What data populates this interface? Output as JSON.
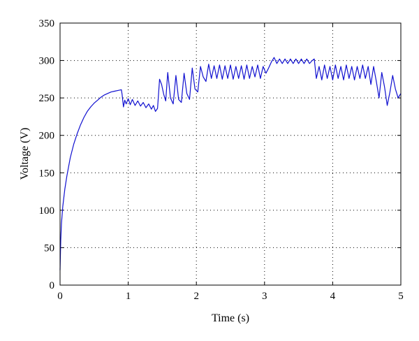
{
  "chart_data": {
    "type": "line",
    "title": "",
    "xlabel": "Time (s)",
    "ylabel": "Voltage (V)",
    "xlim": [
      0,
      5
    ],
    "ylim": [
      0,
      350
    ],
    "xticks": [
      0,
      1,
      2,
      3,
      4,
      5
    ],
    "yticks": [
      0,
      50,
      100,
      150,
      200,
      250,
      300,
      350
    ],
    "xtick_labels": [
      "0",
      "1",
      "2",
      "3",
      "4",
      "5"
    ],
    "ytick_labels": [
      "0",
      "50",
      "100",
      "150",
      "200",
      "250",
      "300",
      "350"
    ],
    "grid": true,
    "legend": "none",
    "line_color": "#1010d0",
    "series": [
      {
        "x": [
          0,
          0.01,
          0.02,
          0.04,
          0.07,
          0.1,
          0.15,
          0.2,
          0.25,
          0.3,
          0.35,
          0.4,
          0.45,
          0.5,
          0.55,
          0.6,
          0.65,
          0.7,
          0.75,
          0.8,
          0.85,
          0.9,
          0.91,
          0.93,
          0.95,
          0.97,
          1.0,
          1.03,
          1.06,
          1.1,
          1.14,
          1.18,
          1.22,
          1.26,
          1.3,
          1.34,
          1.37,
          1.4,
          1.43,
          1.46,
          1.49,
          1.52,
          1.55,
          1.58,
          1.62,
          1.66,
          1.7,
          1.74,
          1.78,
          1.82,
          1.86,
          1.9,
          1.94,
          1.98,
          2.02,
          2.06,
          2.1,
          2.14,
          2.18,
          2.22,
          2.26,
          2.3,
          2.34,
          2.38,
          2.42,
          2.46,
          2.5,
          2.54,
          2.58,
          2.62,
          2.66,
          2.7,
          2.74,
          2.78,
          2.82,
          2.86,
          2.9,
          2.94,
          2.98,
          3.02,
          3.06,
          3.1,
          3.14,
          3.18,
          3.22,
          3.26,
          3.3,
          3.34,
          3.38,
          3.42,
          3.46,
          3.5,
          3.54,
          3.58,
          3.62,
          3.66,
          3.7,
          3.73,
          3.76,
          3.8,
          3.84,
          3.88,
          3.92,
          3.96,
          4.0,
          4.04,
          4.08,
          4.12,
          4.16,
          4.2,
          4.24,
          4.28,
          4.32,
          4.36,
          4.4,
          4.44,
          4.48,
          4.52,
          4.56,
          4.6,
          4.64,
          4.68,
          4.72,
          4.76,
          4.8,
          4.84,
          4.88,
          4.92,
          4.96,
          5.0
        ],
        "y": [
          20,
          60,
          82,
          105,
          128,
          146,
          170,
          188,
          202,
          214,
          224,
          232,
          238,
          243,
          247,
          251,
          254,
          256,
          258,
          259,
          260,
          261,
          255,
          238,
          247,
          242,
          249,
          241,
          248,
          240,
          246,
          239,
          244,
          237,
          242,
          235,
          240,
          232,
          236,
          275,
          268,
          255,
          246,
          284,
          250,
          242,
          280,
          248,
          244,
          283,
          256,
          248,
          290,
          262,
          258,
          292,
          278,
          272,
          295,
          276,
          293,
          276,
          294,
          275,
          293,
          276,
          294,
          275,
          292,
          276,
          293,
          275,
          294,
          276,
          292,
          278,
          294,
          276,
          292,
          283,
          290,
          298,
          304,
          296,
          302,
          296,
          302,
          296,
          302,
          296,
          302,
          296,
          302,
          296,
          302,
          296,
          300,
          302,
          276,
          292,
          274,
          294,
          276,
          292,
          274,
          294,
          276,
          292,
          274,
          294,
          276,
          292,
          274,
          292,
          276,
          294,
          276,
          292,
          268,
          292,
          272,
          250,
          284,
          265,
          240,
          258,
          280,
          262,
          250,
          256
        ]
      }
    ]
  }
}
